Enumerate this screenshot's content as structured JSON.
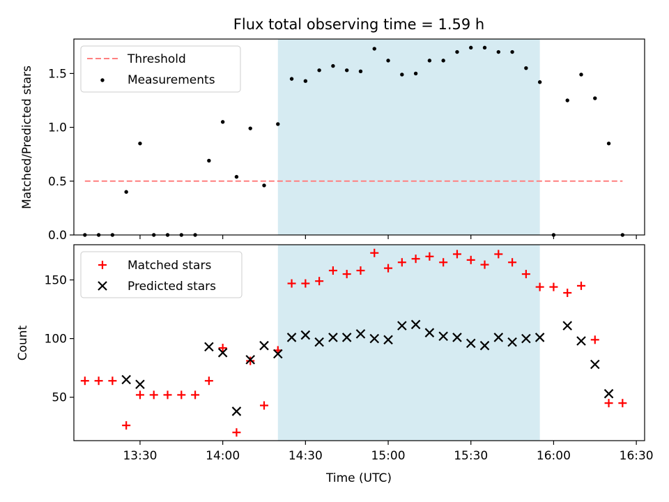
{
  "title": "Flux total observing time = 1.59 h",
  "colors": {
    "threshold": "#ff7f7f",
    "measurement": "#000000",
    "matched": "#ff0000",
    "predicted": "#000000",
    "span": "#add8e6"
  },
  "chart_data": [
    {
      "type": "scatter",
      "ylabel": "Matched/Predicted stars",
      "ylim": [
        0,
        1.82
      ],
      "yticks": [
        0.0,
        0.5,
        1.0,
        1.5
      ],
      "ytick_labels": [
        "0.0",
        "0.5",
        "1.0",
        "1.5"
      ],
      "xlim": [
        "13:06",
        "16:33"
      ],
      "span": [
        "14:20",
        "15:55"
      ],
      "legend": {
        "placement": "top-left",
        "threshold_label": "Threshold",
        "measurements_label": "Measurements"
      },
      "threshold": {
        "value": 0.5,
        "x": [
          "13:10",
          "16:25"
        ],
        "name": "Threshold"
      },
      "series": [
        {
          "name": "Measurements",
          "x": [
            "13:10",
            "13:15",
            "13:20",
            "13:25",
            "13:30",
            "13:35",
            "13:40",
            "13:45",
            "13:50",
            "13:55",
            "14:00",
            "14:05",
            "14:10",
            "14:15",
            "14:20",
            "14:25",
            "14:30",
            "14:35",
            "14:40",
            "14:45",
            "14:50",
            "14:55",
            "15:00",
            "15:05",
            "15:10",
            "15:15",
            "15:20",
            "15:25",
            "15:30",
            "15:35",
            "15:40",
            "15:45",
            "15:50",
            "15:55",
            "16:00",
            "16:05",
            "16:10",
            "16:15",
            "16:20",
            "16:25"
          ],
          "y": [
            0.0,
            0.0,
            0.0,
            0.4,
            0.85,
            0.0,
            0.0,
            0.0,
            0.0,
            0.69,
            1.05,
            0.54,
            0.99,
            0.46,
            1.03,
            1.45,
            1.43,
            1.53,
            1.57,
            1.53,
            1.52,
            1.73,
            1.62,
            1.49,
            1.5,
            1.62,
            1.62,
            1.7,
            1.74,
            1.74,
            1.7,
            1.7,
            1.55,
            1.42,
            0.0,
            1.25,
            1.49,
            1.27,
            0.85,
            0.0
          ]
        }
      ]
    },
    {
      "type": "scatter",
      "xlabel": "Time (UTC)",
      "ylabel": "Count",
      "ylim": [
        13,
        180
      ],
      "yticks": [
        50,
        100,
        150
      ],
      "ytick_labels": [
        "50",
        "100",
        "150"
      ],
      "xticks": [
        "13:30",
        "14:00",
        "14:30",
        "15:00",
        "15:30",
        "16:00",
        "16:30"
      ],
      "xlim": [
        "13:06",
        "16:33"
      ],
      "span": [
        "14:20",
        "15:55"
      ],
      "legend": {
        "placement": "top-left",
        "matched_label": "Matched stars",
        "predicted_label": "Predicted stars"
      },
      "series": [
        {
          "name": "Matched stars",
          "marker": "+",
          "x": [
            "13:10",
            "13:15",
            "13:20",
            "13:25",
            "13:30",
            "13:35",
            "13:40",
            "13:45",
            "13:50",
            "13:55",
            "14:00",
            "14:05",
            "14:10",
            "14:15",
            "14:20",
            "14:25",
            "14:30",
            "14:35",
            "14:40",
            "14:45",
            "14:50",
            "14:55",
            "15:00",
            "15:05",
            "15:10",
            "15:15",
            "15:20",
            "15:25",
            "15:30",
            "15:35",
            "15:40",
            "15:45",
            "15:50",
            "15:55",
            "16:00",
            "16:05",
            "16:10",
            "16:15",
            "16:20",
            "16:25"
          ],
          "y": [
            64,
            64,
            64,
            26,
            52,
            52,
            52,
            52,
            52,
            64,
            92,
            20,
            81,
            43,
            90,
            147,
            147,
            149,
            158,
            155,
            158,
            173,
            160,
            165,
            168,
            170,
            165,
            172,
            167,
            163,
            172,
            165,
            155,
            144,
            144,
            139,
            145,
            99,
            45,
            45
          ]
        },
        {
          "name": "Predicted stars",
          "marker": "x",
          "x": [
            "13:25",
            "13:30",
            "13:55",
            "14:00",
            "14:05",
            "14:10",
            "14:15",
            "14:20",
            "14:25",
            "14:30",
            "14:35",
            "14:40",
            "14:45",
            "14:50",
            "14:55",
            "15:00",
            "15:05",
            "15:10",
            "15:15",
            "15:20",
            "15:25",
            "15:30",
            "15:35",
            "15:40",
            "15:45",
            "15:50",
            "15:55",
            "16:05",
            "16:10",
            "16:15",
            "16:20"
          ],
          "y": [
            65,
            61,
            93,
            88,
            38,
            82,
            94,
            87,
            101,
            103,
            97,
            101,
            101,
            104,
            100,
            99,
            111,
            112,
            105,
            102,
            101,
            96,
            94,
            101,
            97,
            100,
            101,
            111,
            98,
            78,
            53
          ]
        }
      ]
    }
  ]
}
